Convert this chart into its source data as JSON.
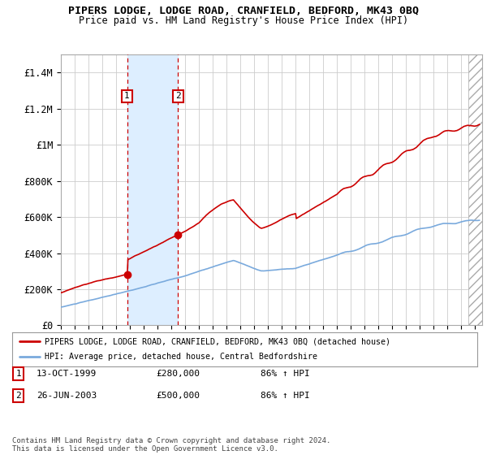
{
  "title": "PIPERS LODGE, LODGE ROAD, CRANFIELD, BEDFORD, MK43 0BQ",
  "subtitle": "Price paid vs. HM Land Registry's House Price Index (HPI)",
  "ylim": [
    0,
    1500000
  ],
  "yticks": [
    0,
    200000,
    400000,
    600000,
    800000,
    1000000,
    1200000,
    1400000
  ],
  "ytick_labels": [
    "£0",
    "£200K",
    "£400K",
    "£600K",
    "£800K",
    "£1M",
    "£1.2M",
    "£1.4M"
  ],
  "xmin": 1995.0,
  "xmax": 2025.5,
  "transaction1_x": 1999.79,
  "transaction1_y": 280000,
  "transaction2_x": 2003.49,
  "transaction2_y": 500000,
  "shade_x1": 1999.79,
  "shade_x2": 2003.49,
  "hatch_x": 2024.5,
  "legend_line1": "PIPERS LODGE, LODGE ROAD, CRANFIELD, BEDFORD, MK43 0BQ (detached house)",
  "legend_line2": "HPI: Average price, detached house, Central Bedfordshire",
  "table_row1": [
    "1",
    "13-OCT-1999",
    "£280,000",
    "86% ↑ HPI"
  ],
  "table_row2": [
    "2",
    "26-JUN-2003",
    "£500,000",
    "86% ↑ HPI"
  ],
  "footnote": "Contains HM Land Registry data © Crown copyright and database right 2024.\nThis data is licensed under the Open Government Licence v3.0.",
  "red_color": "#cc0000",
  "blue_color": "#7aaadd",
  "shade_color": "#ddeeff",
  "grid_color": "#cccccc",
  "bg_color": "#ffffff"
}
